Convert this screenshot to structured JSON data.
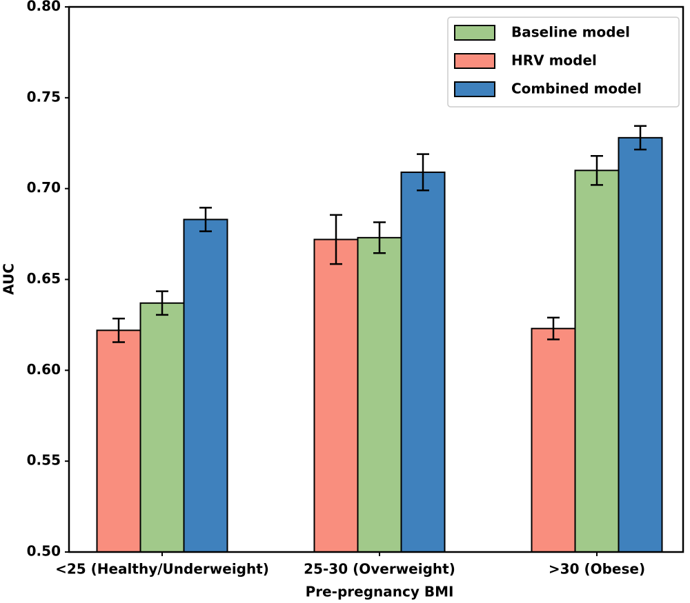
{
  "chart_data": {
    "type": "bar",
    "x_label": "Pre-pregnancy BMI",
    "y_label": "AUC",
    "categories": [
      "<25 (Healthy/Underweight)",
      "25-30 (Overweight)",
      ">30 (Obese)"
    ],
    "series": [
      {
        "name": "Baseline model",
        "color": "#a1c98a",
        "values": [
          0.637,
          0.673,
          0.71
        ],
        "errors": [
          0.0065,
          0.0085,
          0.008
        ]
      },
      {
        "name": "HRV model",
        "color": "#f98e7e",
        "values": [
          0.622,
          0.672,
          0.623
        ],
        "errors": [
          0.0065,
          0.0135,
          0.006
        ]
      },
      {
        "name": "Combined model",
        "color": "#3f81bd",
        "values": [
          0.683,
          0.709,
          0.728
        ],
        "errors": [
          0.0065,
          0.01,
          0.0065
        ]
      }
    ],
    "ylim": [
      0.5,
      0.8
    ],
    "yticks": [
      {
        "value": 0.5,
        "label": "0.50"
      },
      0.55,
      {
        "value": 0.6,
        "label": "0.60"
      },
      0.65,
      {
        "value": 0.7,
        "label": "0.70"
      },
      0.75,
      {
        "value": 0.8,
        "label": "0.80"
      }
    ],
    "legend": "upper right"
  }
}
